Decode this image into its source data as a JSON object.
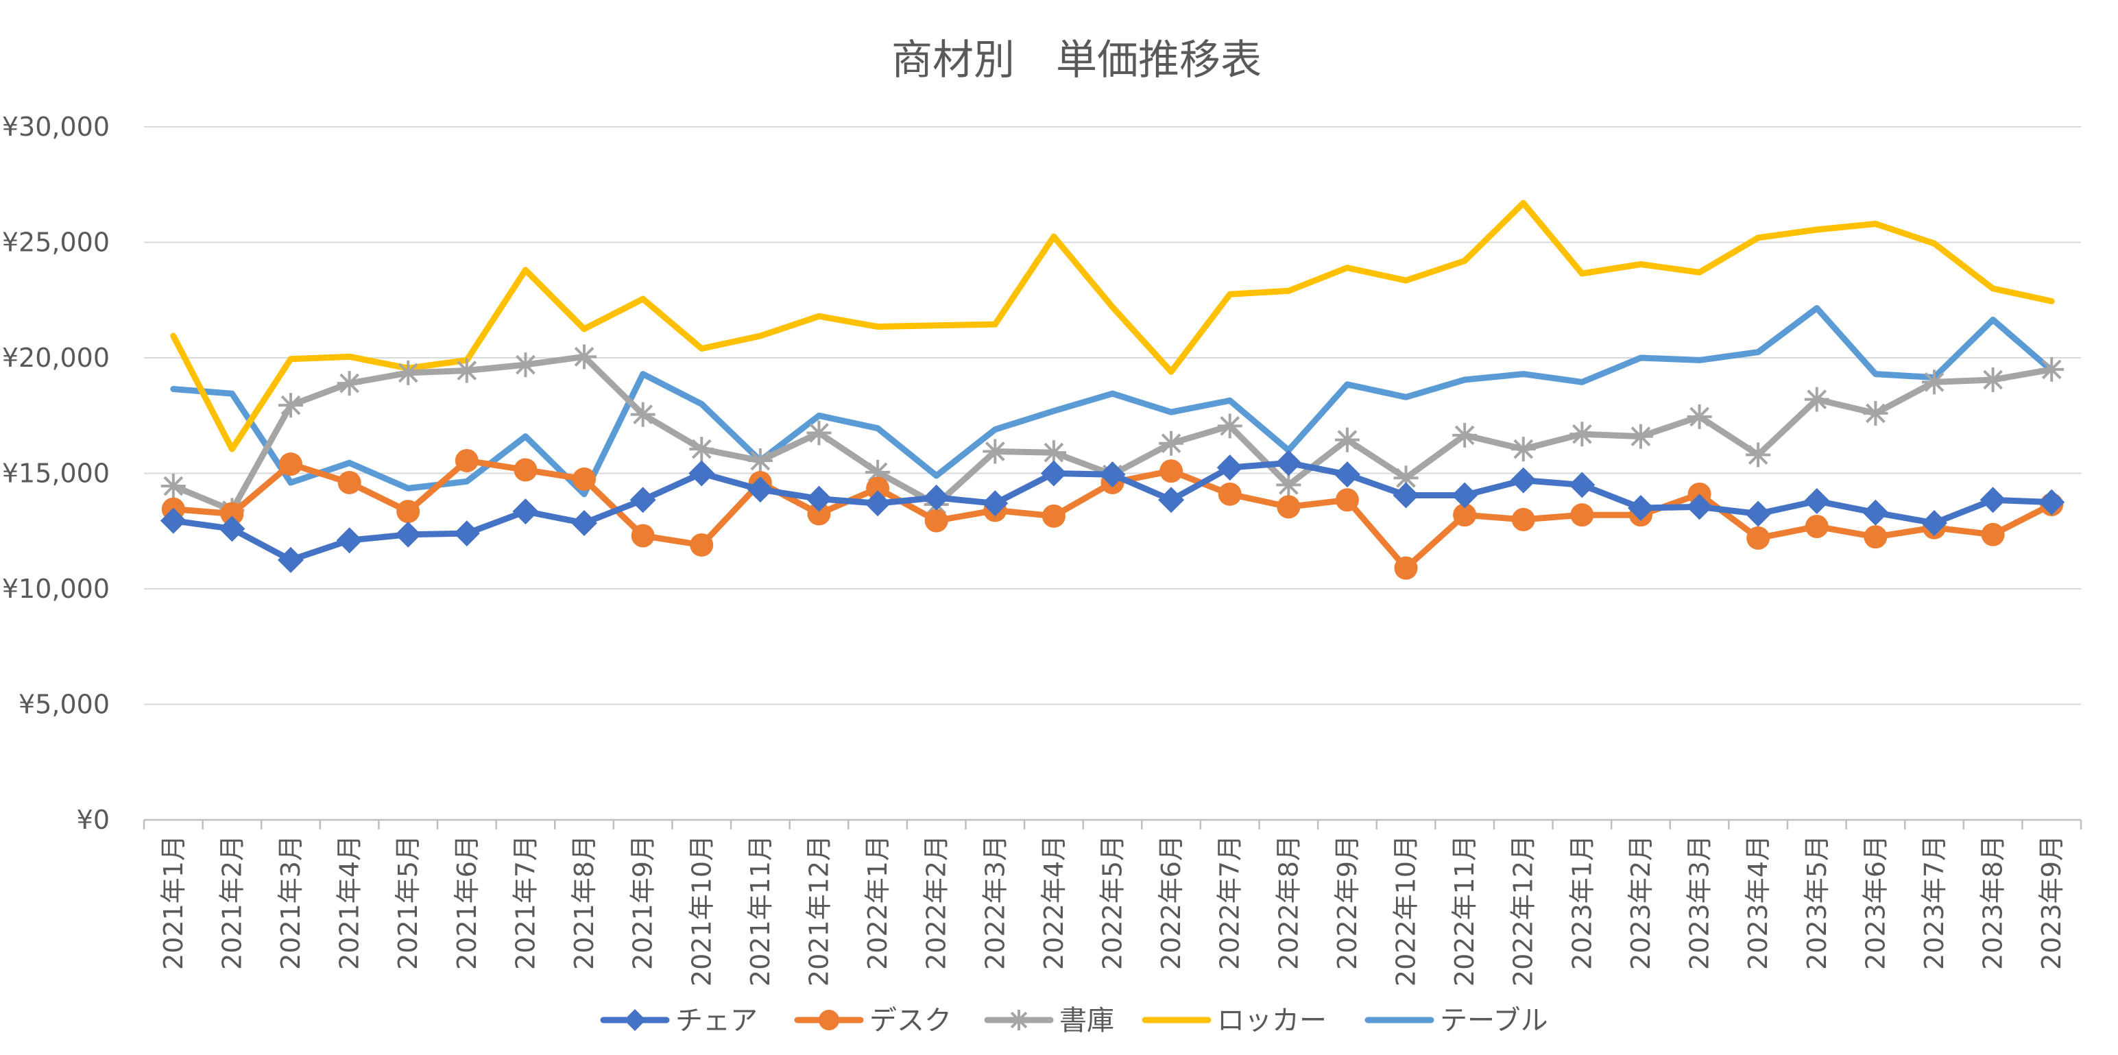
{
  "chart_data": {
    "type": "line",
    "title": "商材別　単価推移表",
    "xlabel": "",
    "ylabel": "",
    "ylim": [
      0,
      30000
    ],
    "yticks": [
      0,
      5000,
      10000,
      15000,
      20000,
      25000,
      30000
    ],
    "ytick_labels": [
      "¥0",
      "¥5,000",
      "¥10,000",
      "¥15,000",
      "¥20,000",
      "¥25,000",
      "¥30,000"
    ],
    "grid": true,
    "legend_position": "bottom",
    "categories": [
      "2021年1月",
      "2021年2月",
      "2021年3月",
      "2021年4月",
      "2021年5月",
      "2021年6月",
      "2021年7月",
      "2021年8月",
      "2021年9月",
      "2021年10月",
      "2021年11月",
      "2021年12月",
      "2022年1月",
      "2022年2月",
      "2022年3月",
      "2022年4月",
      "2022年5月",
      "2022年6月",
      "2022年7月",
      "2022年8月",
      "2022年9月",
      "2022年10月",
      "2022年11月",
      "2022年12月",
      "2023年1月",
      "2023年2月",
      "2023年3月",
      "2023年4月",
      "2023年5月",
      "2023年6月",
      "2023年7月",
      "2023年8月",
      "2023年9月"
    ],
    "series": [
      {
        "name": "チェア",
        "color": "#4472c4",
        "marker": "diamond",
        "values": [
          12950,
          12600,
          11250,
          12100,
          12350,
          12400,
          13350,
          12850,
          13850,
          15000,
          14300,
          13900,
          13700,
          13950,
          13700,
          15000,
          14950,
          13850,
          15250,
          15450,
          14950,
          14050,
          14050,
          14700,
          14500,
          13500,
          13550,
          13250,
          13800,
          13300,
          12850,
          13850,
          13750
        ]
      },
      {
        "name": "デスク",
        "color": "#ed7d31",
        "marker": "circle",
        "values": [
          13450,
          13250,
          15400,
          14600,
          13350,
          15550,
          15150,
          14750,
          12300,
          11900,
          14600,
          13250,
          14350,
          12950,
          13400,
          13150,
          14600,
          15100,
          14100,
          13550,
          13850,
          10900,
          13200,
          13000,
          13200,
          13200,
          14100,
          12200,
          12700,
          12250,
          12650,
          12350,
          13650
        ]
      },
      {
        "name": "書庫",
        "color": "#a5a5a5",
        "marker": "star",
        "values": [
          14450,
          13400,
          17950,
          18900,
          19350,
          19450,
          19700,
          20050,
          17550,
          16050,
          15550,
          16750,
          15050,
          13650,
          15950,
          15900,
          14950,
          16300,
          17050,
          14500,
          16450,
          14800,
          16650,
          16050,
          16700,
          16600,
          17450,
          15800,
          18200,
          17600,
          18950,
          19050,
          19500
        ]
      },
      {
        "name": "ロッカー",
        "color": "#ffc000",
        "marker": "none",
        "values": [
          20950,
          16050,
          19950,
          20050,
          19550,
          19900,
          23800,
          21250,
          22550,
          20400,
          20950,
          21800,
          21350,
          21400,
          21450,
          25250,
          22200,
          19400,
          22750,
          22900,
          23900,
          23350,
          24200,
          26700,
          23650,
          24050,
          23700,
          25200,
          25550,
          25800,
          24950,
          23000,
          22450
        ]
      },
      {
        "name": "テーブル",
        "color": "#5b9bd5",
        "marker": "none",
        "values": [
          18650,
          18450,
          14600,
          15450,
          14350,
          14650,
          16600,
          14100,
          19300,
          18000,
          15550,
          17500,
          16950,
          14900,
          16900,
          17700,
          18450,
          17650,
          18150,
          16000,
          18850,
          18300,
          19050,
          19300,
          18950,
          20000,
          19900,
          20250,
          22150,
          19300,
          19150,
          21650,
          19450
        ]
      }
    ]
  }
}
